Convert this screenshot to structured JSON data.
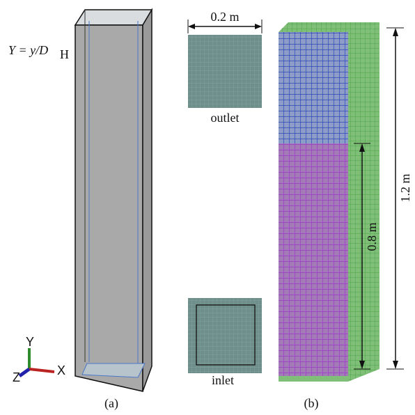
{
  "panel_a": {
    "formula": "Y = y/D",
    "formula_subscript": "H",
    "axes": {
      "y": "Y",
      "x": "X",
      "z": "Z"
    },
    "caption": "(a)"
  },
  "panel_b": {
    "width_label": "0.2 m",
    "outlet_label": "outlet",
    "inlet_label": "inlet",
    "height_label": "1.2 m",
    "lower_height_label": "0.8 m",
    "caption": "(b)"
  }
}
